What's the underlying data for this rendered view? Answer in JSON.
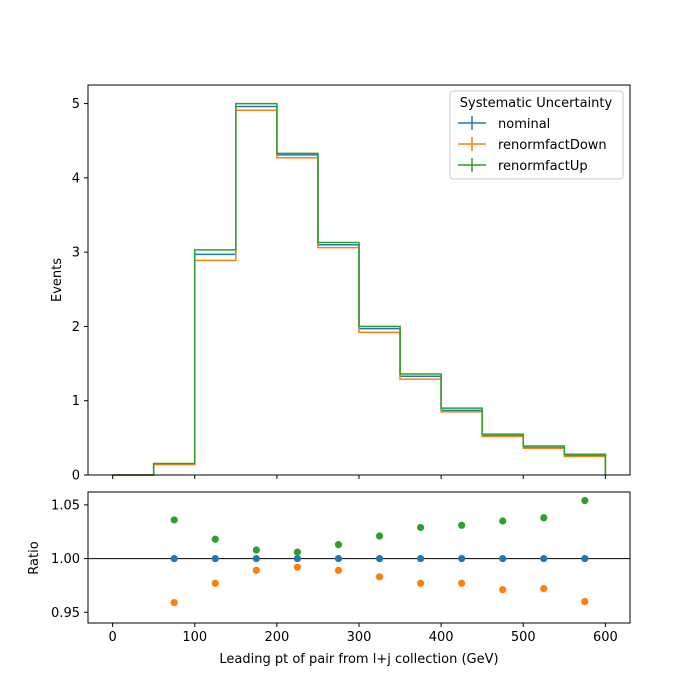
{
  "chart_data": [
    {
      "type": "step",
      "title": "",
      "xlabel": "",
      "ylabel": "Events",
      "xlim": [
        -30,
        630
      ],
      "ylim": [
        0,
        5.25
      ],
      "yticks": [
        0,
        1,
        2,
        3,
        4,
        5
      ],
      "bin_edges": [
        0,
        50,
        100,
        150,
        200,
        250,
        300,
        350,
        400,
        450,
        500,
        550,
        600
      ],
      "legend": {
        "title": "Systematic Uncertainty",
        "location": "upper right"
      },
      "series": [
        {
          "name": "nominal",
          "color": "#1f77b4",
          "values": [
            0.0,
            0.15,
            2.97,
            4.96,
            4.31,
            3.1,
            1.97,
            1.33,
            0.87,
            0.53,
            0.37,
            0.26
          ]
        },
        {
          "name": "renormfactDown",
          "color": "#ff7f0e",
          "values": [
            0.0,
            0.14,
            2.89,
            4.91,
            4.27,
            3.06,
            1.92,
            1.29,
            0.85,
            0.52,
            0.36,
            0.25
          ]
        },
        {
          "name": "renormfactUp",
          "color": "#2ca02c",
          "values": [
            0.0,
            0.155,
            3.03,
            5.0,
            4.33,
            3.13,
            2.0,
            1.36,
            0.9,
            0.55,
            0.39,
            0.28
          ]
        }
      ]
    },
    {
      "type": "scatter",
      "xlabel": "Leading pt of pair from l+j collection (GeV)",
      "ylabel": "Ratio",
      "xlim": [
        -30,
        630
      ],
      "ylim": [
        0.94,
        1.062
      ],
      "xticks": [
        0,
        100,
        200,
        300,
        400,
        500,
        600
      ],
      "yticks": [
        "0.95",
        "1.00",
        "1.05"
      ],
      "reference_line": 1.0,
      "x": [
        75,
        125,
        175,
        225,
        275,
        325,
        375,
        425,
        475,
        525,
        575
      ],
      "series": [
        {
          "name": "nominal",
          "color": "#1f77b4",
          "values": [
            1.0,
            1.0,
            1.0,
            1.0,
            1.0,
            1.0,
            1.0,
            1.0,
            1.0,
            1.0,
            1.0
          ]
        },
        {
          "name": "renormfactDown",
          "color": "#ff7f0e",
          "values": [
            0.959,
            0.977,
            0.989,
            0.992,
            0.989,
            0.983,
            0.977,
            0.977,
            0.971,
            0.972,
            0.96
          ]
        },
        {
          "name": "renormfactUp",
          "color": "#2ca02c",
          "values": [
            1.036,
            1.018,
            1.008,
            1.006,
            1.013,
            1.021,
            1.029,
            1.031,
            1.035,
            1.038,
            1.054
          ]
        }
      ]
    }
  ]
}
